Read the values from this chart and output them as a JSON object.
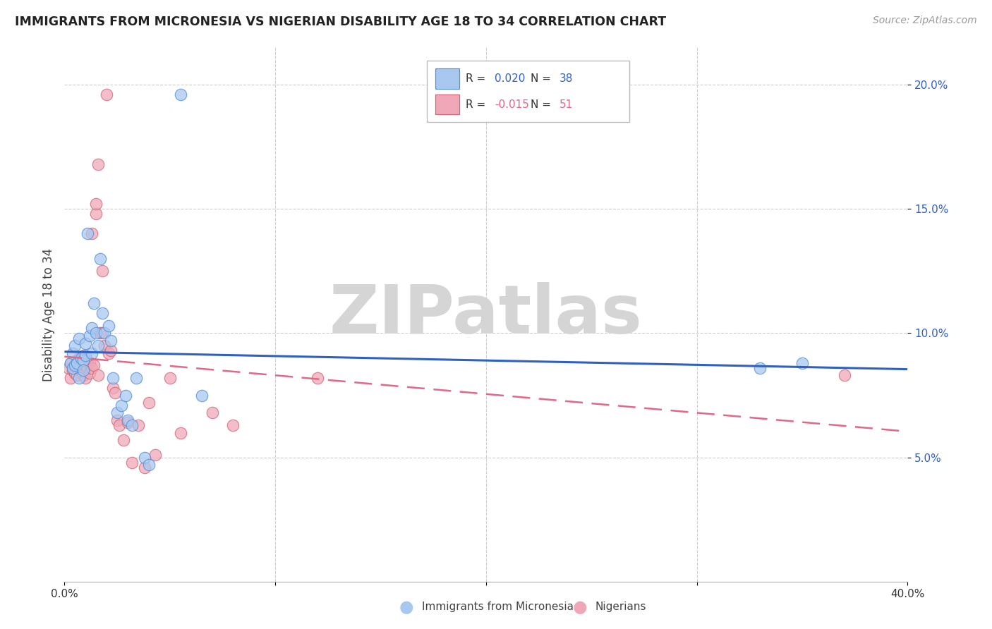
{
  "title": "IMMIGRANTS FROM MICRONESIA VS NIGERIAN DISABILITY AGE 18 TO 34 CORRELATION CHART",
  "source": "Source: ZipAtlas.com",
  "ylabel": "Disability Age 18 to 34",
  "legend_label1": "Immigrants from Micronesia",
  "legend_label2": "Nigerians",
  "r1": "0.020",
  "n1": "38",
  "r2": "-0.015",
  "n2": "51",
  "xlim": [
    0.0,
    0.4
  ],
  "ylim": [
    0.0,
    0.215
  ],
  "yticks": [
    0.05,
    0.1,
    0.15,
    0.2
  ],
  "ytick_labels": [
    "5.0%",
    "10.0%",
    "15.0%",
    "20.0%"
  ],
  "color_mic_fill": "#a8c8f0",
  "color_mic_edge": "#5590d8",
  "color_nig_fill": "#f0a8b8",
  "color_nig_edge": "#d06878",
  "color_line_mic": "#3060c0",
  "color_line_nig": "#e06888",
  "mic_x": [
    0.003,
    0.004,
    0.004,
    0.005,
    0.005,
    0.006,
    0.007,
    0.007,
    0.008,
    0.009,
    0.009,
    0.01,
    0.01,
    0.011,
    0.012,
    0.013,
    0.013,
    0.014,
    0.015,
    0.016,
    0.017,
    0.018,
    0.019,
    0.021,
    0.022,
    0.023,
    0.025,
    0.027,
    0.029,
    0.03,
    0.032,
    0.034,
    0.038,
    0.04,
    0.055,
    0.065,
    0.33,
    0.35
  ],
  "mic_y": [
    0.088,
    0.086,
    0.092,
    0.087,
    0.095,
    0.088,
    0.082,
    0.098,
    0.09,
    0.089,
    0.085,
    0.091,
    0.096,
    0.14,
    0.099,
    0.092,
    0.102,
    0.112,
    0.1,
    0.095,
    0.13,
    0.108,
    0.1,
    0.103,
    0.097,
    0.082,
    0.068,
    0.071,
    0.075,
    0.065,
    0.063,
    0.082,
    0.05,
    0.047,
    0.196,
    0.075,
    0.086,
    0.088
  ],
  "nig_x": [
    0.002,
    0.003,
    0.003,
    0.004,
    0.005,
    0.005,
    0.006,
    0.006,
    0.007,
    0.007,
    0.008,
    0.008,
    0.009,
    0.009,
    0.01,
    0.01,
    0.011,
    0.011,
    0.012,
    0.012,
    0.013,
    0.013,
    0.014,
    0.015,
    0.015,
    0.016,
    0.016,
    0.017,
    0.018,
    0.018,
    0.019,
    0.02,
    0.021,
    0.022,
    0.023,
    0.024,
    0.025,
    0.026,
    0.028,
    0.03,
    0.032,
    0.035,
    0.038,
    0.04,
    0.043,
    0.05,
    0.055,
    0.07,
    0.08,
    0.12,
    0.37
  ],
  "nig_y": [
    0.086,
    0.088,
    0.082,
    0.085,
    0.084,
    0.087,
    0.083,
    0.089,
    0.086,
    0.09,
    0.085,
    0.088,
    0.091,
    0.083,
    0.082,
    0.087,
    0.086,
    0.089,
    0.084,
    0.088,
    0.086,
    0.14,
    0.087,
    0.148,
    0.152,
    0.168,
    0.083,
    0.1,
    0.125,
    0.1,
    0.095,
    0.196,
    0.092,
    0.093,
    0.078,
    0.076,
    0.065,
    0.063,
    0.057,
    0.064,
    0.048,
    0.063,
    0.046,
    0.072,
    0.051,
    0.082,
    0.06,
    0.068,
    0.063,
    0.082,
    0.083
  ]
}
